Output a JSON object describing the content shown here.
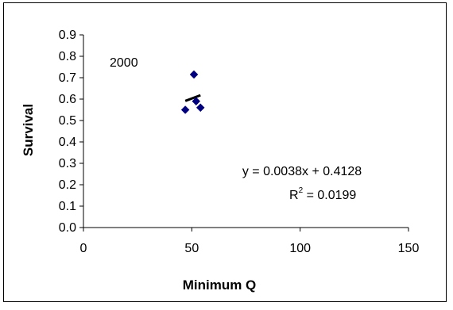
{
  "chart_data": {
    "type": "scatter",
    "title": "",
    "xlabel": "Minimum Q",
    "ylabel": "Survival",
    "xlim": [
      0,
      150
    ],
    "ylim": [
      0.0,
      0.9
    ],
    "x_ticks": [
      "0",
      "50",
      "100",
      "150"
    ],
    "y_ticks": [
      "0.0",
      "0.1",
      "0.2",
      "0.3",
      "0.4",
      "0.5",
      "0.6",
      "0.7",
      "0.8",
      "0.9"
    ],
    "grid": false,
    "legend": "none",
    "series": [
      {
        "marker": "diamond",
        "color": "#000080",
        "points": [
          {
            "x": 47,
            "y": 0.55
          },
          {
            "x": 51,
            "y": 0.715
          },
          {
            "x": 52,
            "y": 0.59
          },
          {
            "x": 54,
            "y": 0.56
          }
        ]
      }
    ],
    "trendline": {
      "slope": 0.0038,
      "intercept": 0.4128,
      "x_range": [
        47,
        54
      ],
      "color": "#000000"
    },
    "annotations": {
      "year": "2000",
      "equation": "y = 0.0038x + 0.4128",
      "r2_prefix": "R",
      "r2_sup": "2",
      "r2_value": " = 0.0199"
    }
  }
}
